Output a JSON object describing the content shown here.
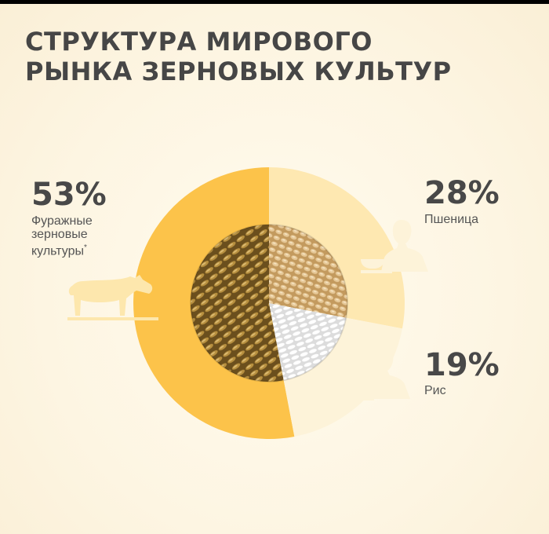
{
  "title": {
    "line1": "СТРУКТУРА МИРОВОГО",
    "line2": "РЫНКА ЗЕРНОВЫХ КУЛЬТУР"
  },
  "labels": [
    {
      "value": "53%",
      "name": "Фуражные зерновые культуры",
      "name_lines": [
        "Фуражные",
        "зерновые",
        "культуры"
      ],
      "footnote": "*"
    },
    {
      "value": "28%",
      "name": "Пшеница"
    },
    {
      "value": "19%",
      "name": "Рис"
    }
  ],
  "chart_data": {
    "type": "pie",
    "title": "СТРУКТУРА МИРОВОГО РЫНКА ЗЕРНОВЫХ КУЛЬТУР",
    "unit": "%",
    "categories": [
      "Фуражные зерновые культуры",
      "Пшеница",
      "Рис"
    ],
    "values": [
      53,
      28,
      19
    ],
    "colors": [
      "#fcc34a",
      "#fee8b1",
      "#fdf3d9"
    ],
    "icons": [
      "cow-icon",
      "person-with-bowl-icon",
      "person-with-bowl-icon"
    ]
  }
}
